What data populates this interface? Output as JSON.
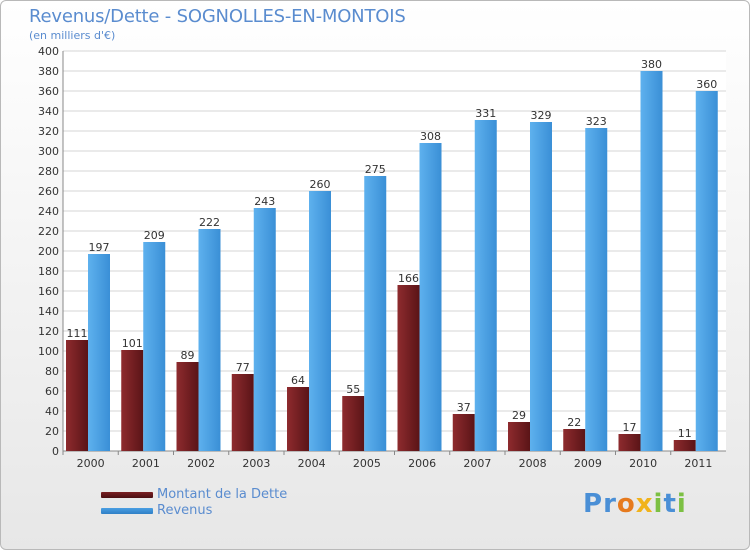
{
  "chart_data": {
    "type": "bar",
    "title": "Revenus/Dette - SOGNOLLES-EN-MONTOIS",
    "subtitle": "(en milliers d'€)",
    "categories": [
      "2000",
      "2001",
      "2002",
      "2003",
      "2004",
      "2005",
      "2006",
      "2007",
      "2008",
      "2009",
      "2010",
      "2011"
    ],
    "series": [
      {
        "name": "Montant de la Dette",
        "color": "#7a1f22",
        "values": [
          111,
          101,
          89,
          77,
          64,
          55,
          166,
          37,
          29,
          22,
          17,
          11
        ]
      },
      {
        "name": "Revenus",
        "color": "#4a9fe3",
        "values": [
          197,
          209,
          222,
          243,
          260,
          275,
          308,
          331,
          329,
          323,
          380,
          360
        ]
      }
    ],
    "ylim": [
      0,
      400
    ],
    "yticks": [
      0,
      20,
      40,
      60,
      80,
      100,
      120,
      140,
      160,
      180,
      200,
      220,
      240,
      260,
      280,
      300,
      320,
      340,
      360,
      380,
      400
    ],
    "grid": true,
    "legend": "bottom-left"
  },
  "logo": {
    "letters": [
      {
        "ch": "P",
        "color": "#4a8fd6"
      },
      {
        "ch": "r",
        "color": "#4a8fd6"
      },
      {
        "ch": "o",
        "color": "#e67a1e"
      },
      {
        "ch": "x",
        "color": "#f1b31c"
      },
      {
        "ch": "i",
        "color": "#7cc043"
      },
      {
        "ch": "t",
        "color": "#4a8fd6"
      },
      {
        "ch": "i",
        "color": "#7cc043"
      }
    ]
  }
}
